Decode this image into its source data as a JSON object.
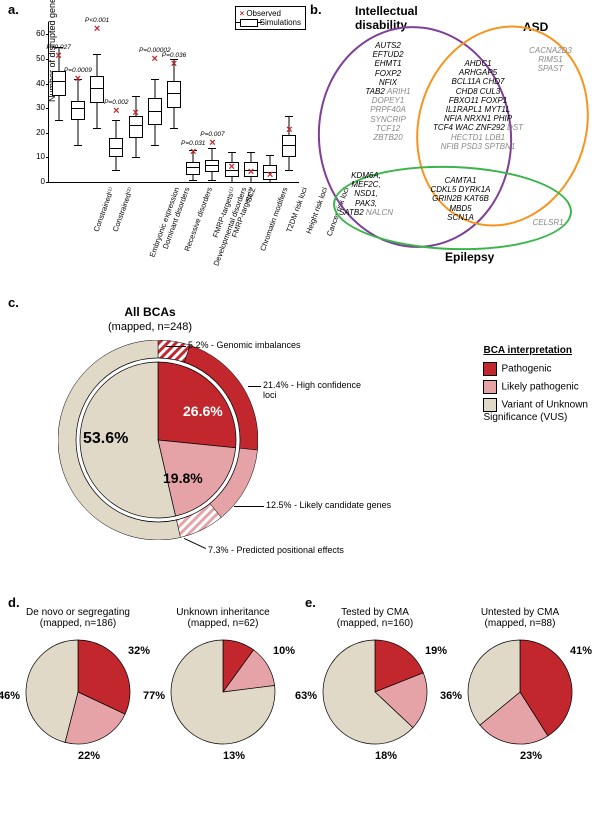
{
  "colors": {
    "pathogenic": "#c1272d",
    "likely_pathogenic": "#e6a3a7",
    "vus": "#e0d9c8",
    "hatch_path": "#c1272d",
    "hatch_lp": "#e6a3a7",
    "venn_purple": "#7f3f98",
    "venn_orange": "#f7941e",
    "venn_green": "#39b54a",
    "gray_text": "#888888"
  },
  "panel_a": {
    "label": "a.",
    "y_axis_label": "Number of disrupted genes",
    "y_ticks": [
      0,
      10,
      20,
      30,
      40,
      50,
      60
    ],
    "y_max": 65,
    "legend": {
      "observed": "Observed",
      "simulations": "Simulations"
    },
    "categories": [
      {
        "name": "Constrained⁽¹⁾",
        "p": "P=0.027",
        "observed": 51,
        "q1": 35,
        "median": 41,
        "q3": 45,
        "lo": 25,
        "hi": 55
      },
      {
        "name": "Constrained⁽²⁾",
        "p": "P=0.0009",
        "observed": 42,
        "q1": 25,
        "median": 30,
        "q3": 33,
        "lo": 15,
        "hi": 42
      },
      {
        "name": "Embryonic expression",
        "p": "P<0.001",
        "observed": 62,
        "q1": 32,
        "median": 38,
        "q3": 43,
        "lo": 22,
        "hi": 52
      },
      {
        "name": "Dominant disorders",
        "p": "P=0.002",
        "observed": 29,
        "q1": 10,
        "median": 14,
        "q3": 18,
        "lo": 5,
        "hi": 25
      },
      {
        "name": "Recessive disorders",
        "p": "",
        "observed": 28,
        "q1": 18,
        "median": 23,
        "q3": 27,
        "lo": 10,
        "hi": 35
      },
      {
        "name": "Developmental disorders",
        "p": "P=0.00002",
        "observed": 50,
        "q1": 23,
        "median": 29,
        "q3": 34,
        "lo": 15,
        "hi": 42
      },
      {
        "name": "FMRP-targets⁽¹⁾",
        "p": "P=0.036",
        "observed": 48,
        "q1": 30,
        "median": 36,
        "q3": 41,
        "lo": 22,
        "hi": 50
      },
      {
        "name": "FMRP-targets⁽²⁾",
        "p": "P=0.031",
        "observed": 12,
        "q1": 3,
        "median": 6,
        "q3": 8,
        "lo": 1,
        "hi": 13
      },
      {
        "name": "Chromatin modifiers",
        "p": "P=0.007",
        "observed": 16,
        "q1": 4,
        "median": 7,
        "q3": 9,
        "lo": 1,
        "hi": 14
      },
      {
        "name": "SCZ",
        "p": "",
        "observed": 6,
        "q1": 2,
        "median": 5,
        "q3": 8,
        "lo": 0,
        "hi": 12
      },
      {
        "name": "T2DM risk loci",
        "p": "",
        "observed": 4,
        "q1": 2,
        "median": 5,
        "q3": 8,
        "lo": 0,
        "hi": 12
      },
      {
        "name": "Height risk loci",
        "p": "",
        "observed": 3,
        "q1": 1,
        "median": 4,
        "q3": 7,
        "lo": 0,
        "hi": 11
      },
      {
        "name": "Cancer risk loci",
        "p": "",
        "observed": 21,
        "q1": 10,
        "median": 15,
        "q3": 19,
        "lo": 5,
        "hi": 27
      }
    ]
  },
  "panel_b": {
    "label": "b.",
    "sets": {
      "id": "Intellectual disability",
      "asd": "ASD",
      "epilepsy": "Epilepsy"
    },
    "genes": {
      "id_only": [
        "AUTS2",
        "EFTUD2",
        "EHMT1",
        "FOXP2",
        "NFIX",
        "TAB2"
      ],
      "id_only_gray": [
        "ARIH1",
        "DOPEY1",
        "PRPF40A",
        "SYNCRIP",
        "TCF12",
        "ZBTB20"
      ],
      "asd_only_gray": [
        "CACNA2D3",
        "RIMS1",
        "SPAST"
      ],
      "id_asd": [
        "AHDC1",
        "ARHGAP5",
        "BCL11A  CHD7",
        "CHD8  CUL3",
        "FBXO11  FOXP1",
        "IL1RAPL1  MYT1L",
        "NFIA  NRXN1  PHIP",
        "TCF4  WAC  ZNF292"
      ],
      "id_asd_gray": [
        "DST  HECTD1  LDB1",
        "NFIB  PSD3  SPTBN1"
      ],
      "id_epi": [
        "KDM6A,",
        "MEF2C,",
        "NSD1,",
        "PAK3,",
        "SATB2"
      ],
      "id_epi_gray": [
        "NALCN"
      ],
      "id_asd_epi": [
        "CAMTA1",
        "CDKL5  DYRK1A",
        "GRIN2B  KAT6B",
        "MBD5",
        "SCN1A"
      ],
      "epi_only_gray": [
        "CELSR1"
      ]
    }
  },
  "panel_c": {
    "label": "c.",
    "title": "All BCAs",
    "subtitle": "(mapped, n=248)",
    "inner": [
      {
        "label": "53.6%",
        "value": 53.6,
        "color_key": "vus"
      },
      {
        "label": "26.6%",
        "value": 26.6,
        "color_key": "pathogenic"
      },
      {
        "label": "19.8%",
        "value": 19.8,
        "color_key": "likely_pathogenic"
      }
    ],
    "outer": [
      {
        "label": "5.2% - Genomic imbalances",
        "value": 5.2,
        "color_key": "pathogenic",
        "hatched": true
      },
      {
        "label": "21.4% - High confidence loci",
        "value": 21.4,
        "color_key": "pathogenic",
        "hatched": false
      },
      {
        "label": "12.5% - Likely candidate genes",
        "value": 12.5,
        "color_key": "likely_pathogenic",
        "hatched": false
      },
      {
        "label": "7.3% - Predicted positional effects",
        "value": 7.3,
        "color_key": "likely_pathogenic",
        "hatched": true
      },
      {
        "label": "",
        "value": 53.6,
        "color_key": "vus",
        "hatched": false
      }
    ],
    "legend": {
      "title": "BCA interpretation",
      "items": [
        {
          "label": "Pathogenic",
          "color_key": "pathogenic"
        },
        {
          "label": "Likely pathogenic",
          "color_key": "likely_pathogenic"
        },
        {
          "label": "Variant of Unknown\nSignificance (VUS)",
          "color_key": "vus"
        }
      ]
    }
  },
  "panel_d": {
    "label": "d.",
    "pies": [
      {
        "title": "De novo or segregating",
        "subtitle": "(mapped, n=186)",
        "slices": [
          {
            "pct": 46,
            "color_key": "vus"
          },
          {
            "pct": 22,
            "color_key": "likely_pathogenic"
          },
          {
            "pct": 32,
            "color_key": "pathogenic"
          }
        ]
      },
      {
        "title": "Unknown inheritance",
        "subtitle": "(mapped, n=62)",
        "slices": [
          {
            "pct": 77,
            "color_key": "vus"
          },
          {
            "pct": 13,
            "color_key": "likely_pathogenic"
          },
          {
            "pct": 10,
            "color_key": "pathogenic"
          }
        ]
      }
    ]
  },
  "panel_e": {
    "label": "e.",
    "pies": [
      {
        "title": "Tested by CMA",
        "subtitle": "(mapped, n=160)",
        "slices": [
          {
            "pct": 63,
            "color_key": "vus"
          },
          {
            "pct": 18,
            "color_key": "likely_pathogenic"
          },
          {
            "pct": 19,
            "color_key": "pathogenic"
          }
        ]
      },
      {
        "title": "Untested by CMA",
        "subtitle": "(mapped, n=88)",
        "slices": [
          {
            "pct": 36,
            "color_key": "vus"
          },
          {
            "pct": 23,
            "color_key": "likely_pathogenic"
          },
          {
            "pct": 41,
            "color_key": "pathogenic"
          }
        ]
      }
    ]
  }
}
